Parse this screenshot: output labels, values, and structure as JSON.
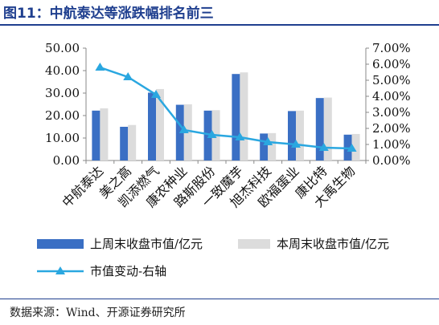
{
  "figure": {
    "title": "图11：中航泰达等涨跌幅排名前三",
    "source": "数据来源：Wind、开源证券研究所"
  },
  "chart_data": {
    "type": "bar",
    "categories": [
      "中航泰达",
      "美之高",
      "凯添燃气",
      "康农种业",
      "路斯股份",
      "一致魔芋",
      "旭杰科技",
      "欧福蛋业",
      "康比特",
      "大禹生物"
    ],
    "series": [
      {
        "name": "上周末收盘市值/亿元",
        "type": "bar",
        "axis": "left",
        "color": "#3a6fc4",
        "values": [
          22.2,
          15.0,
          30.2,
          24.8,
          22.2,
          38.5,
          12.0,
          22.0,
          27.8,
          11.5
        ]
      },
      {
        "name": "本周末收盘市值/亿元",
        "type": "bar",
        "axis": "left",
        "color": "#dcdcdc",
        "values": [
          23.2,
          15.8,
          31.8,
          25.0,
          22.4,
          39.2,
          12.2,
          22.2,
          28.0,
          11.8
        ]
      },
      {
        "name": "市值变动-右轴",
        "type": "line",
        "axis": "right",
        "color": "#2aa7e0",
        "marker": "triangle",
        "values": [
          5.8,
          5.2,
          4.1,
          1.9,
          1.6,
          1.45,
          1.15,
          1.0,
          0.8,
          0.75
        ]
      }
    ],
    "y_left": {
      "min": 0,
      "max": 50,
      "step": 10,
      "tick_labels": [
        "0.00",
        "10.00",
        "20.00",
        "30.00",
        "40.00",
        "50.00"
      ]
    },
    "y_right": {
      "min": 0,
      "max": 7,
      "step": 1,
      "tick_labels": [
        "0.00%",
        "1.00%",
        "2.00%",
        "3.00%",
        "4.00%",
        "5.00%",
        "6.00%",
        "7.00%"
      ]
    },
    "grid": false,
    "legend_position": "bottom"
  }
}
